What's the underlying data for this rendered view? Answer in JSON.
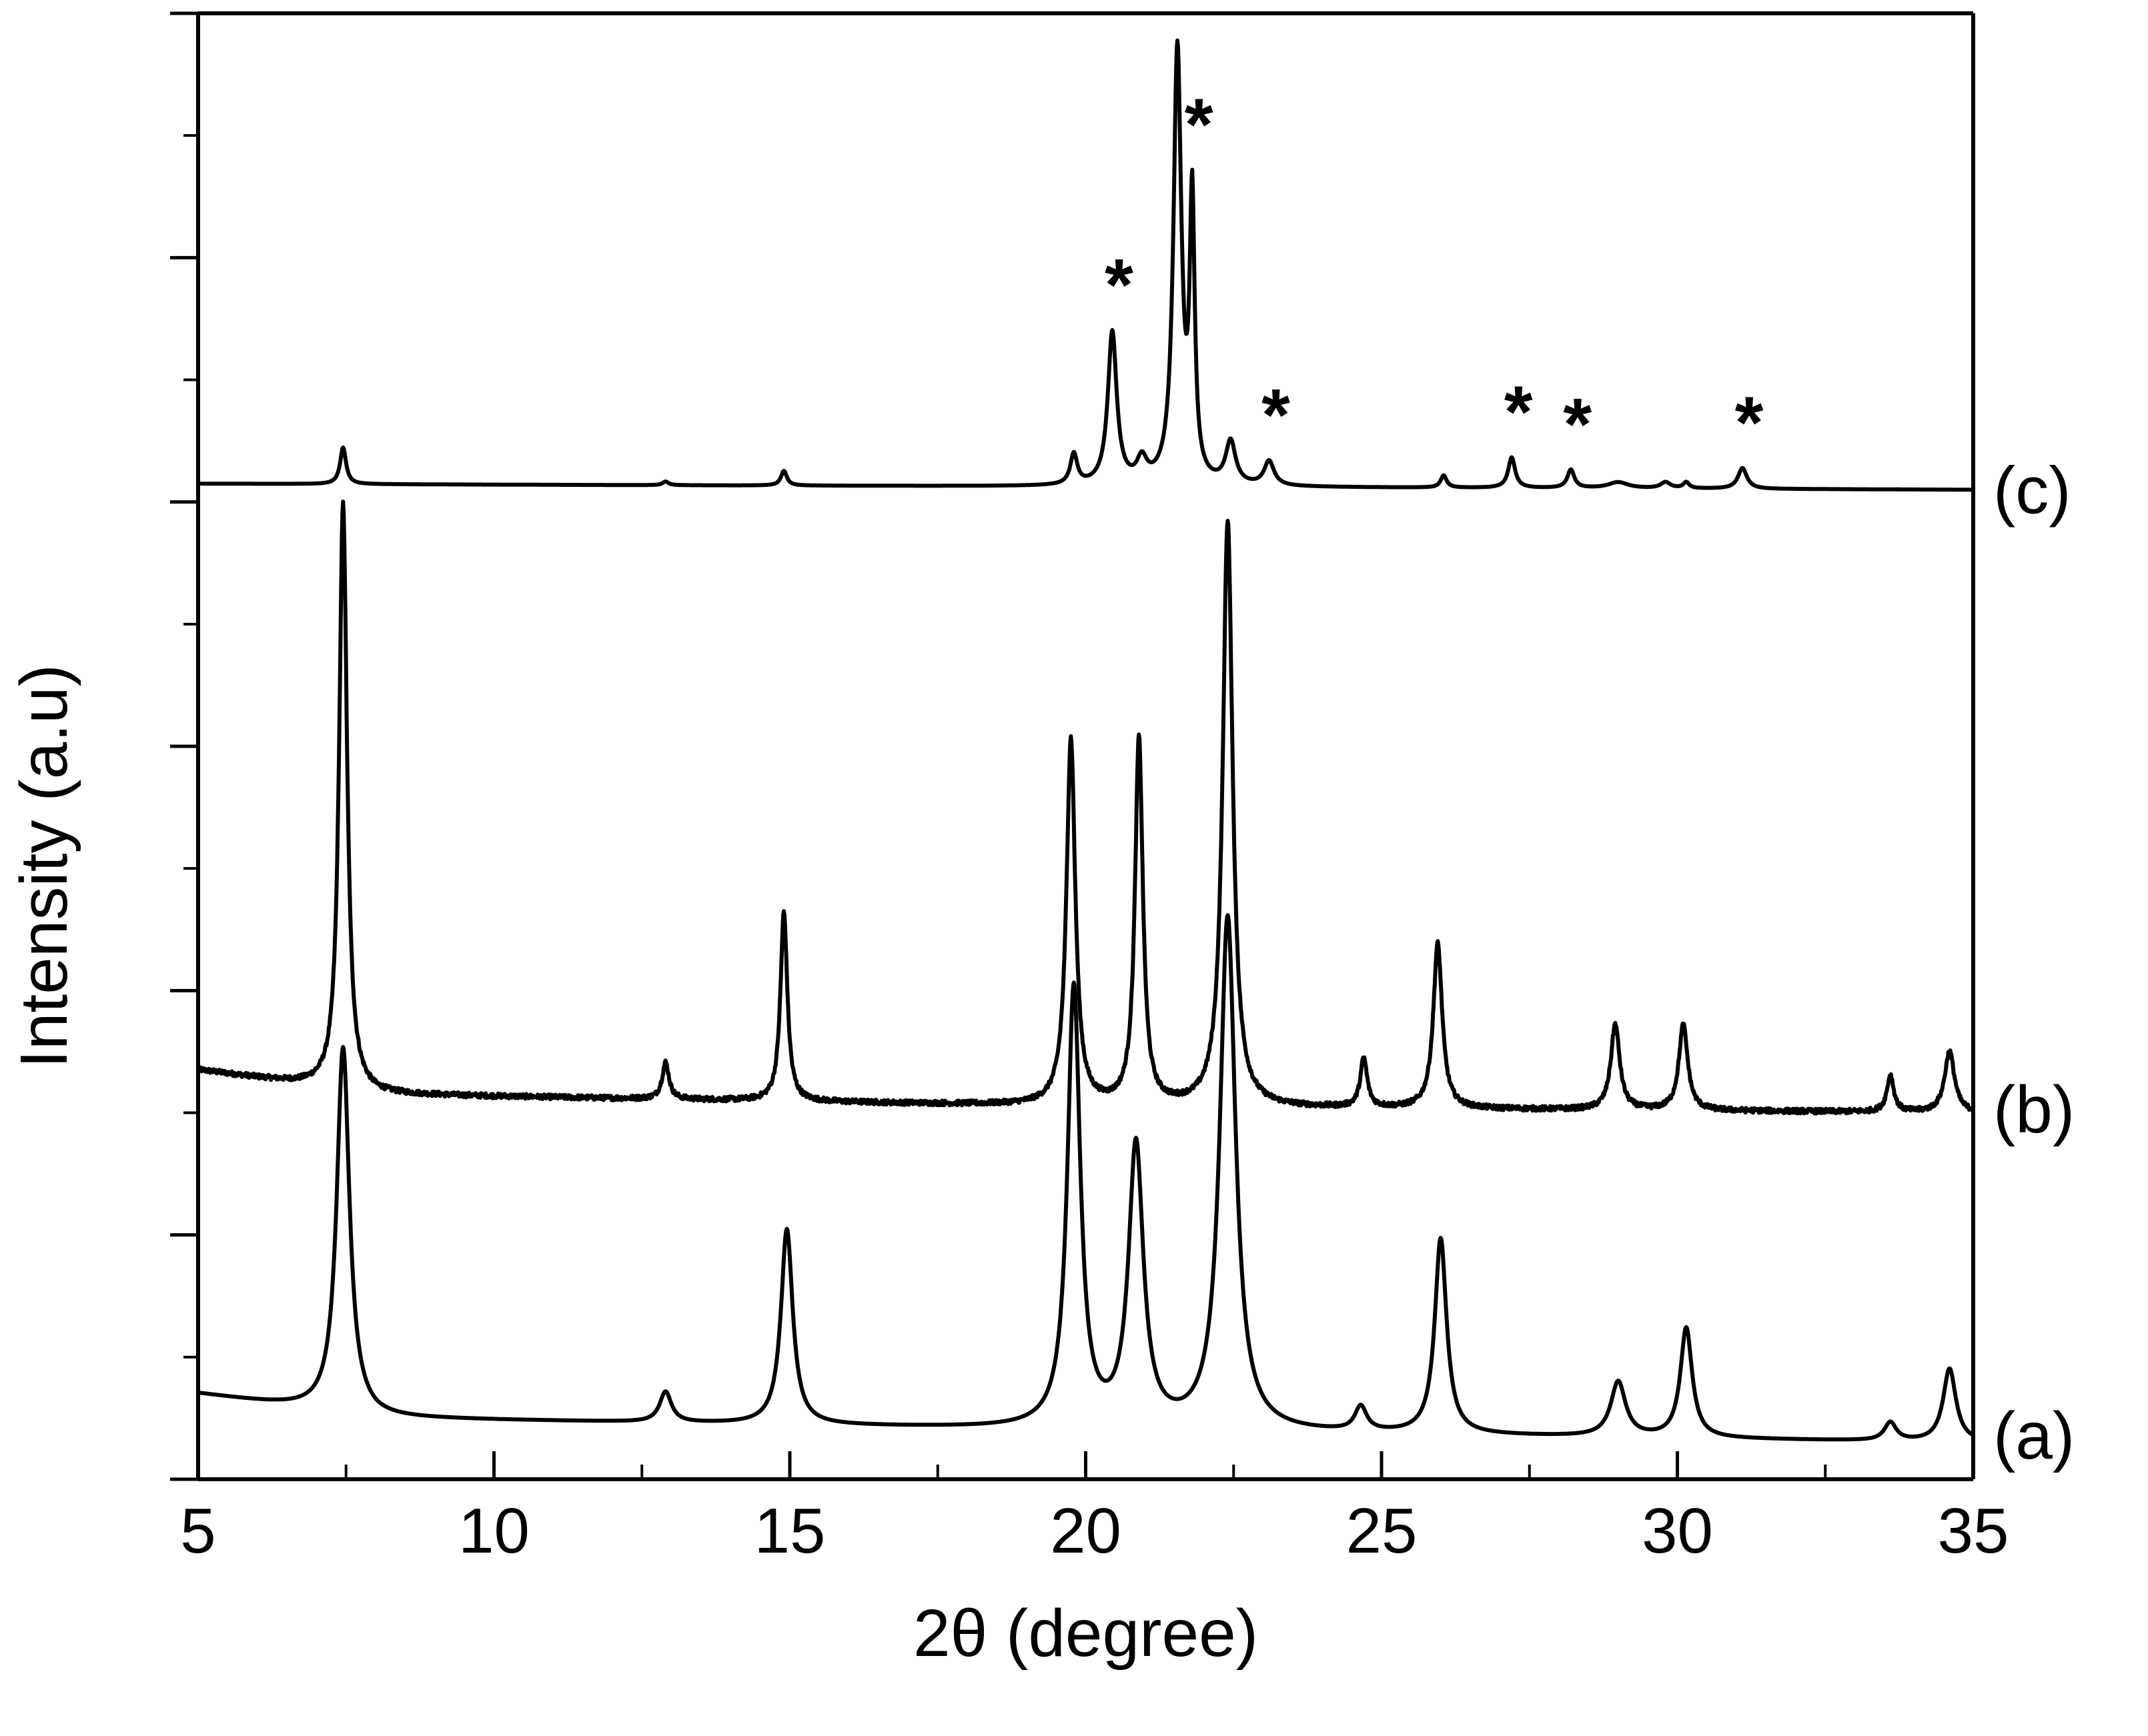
{
  "chart_data": {
    "type": "line",
    "title": "",
    "xlabel": "2θ (degree)",
    "ylabel": "Intensity (a.u)",
    "xlim": [
      5,
      35
    ],
    "ylim": [
      0,
      12
    ],
    "x_ticks": [
      "5",
      "10",
      "15",
      "20",
      "25",
      "30",
      "35"
    ],
    "y_ticks_labeled": false,
    "grid": false,
    "legend": "none (series labelled at right end of each trace)",
    "series": [
      {
        "name": "(a)",
        "baseline": [
          [
            5,
            0.7
          ],
          [
            8,
            0.5
          ],
          [
            20,
            0.4
          ],
          [
            35,
            0.3
          ]
        ],
        "noise": 0,
        "peaks": [
          [
            7.45,
            3.0,
            0.13
          ],
          [
            12.9,
            0.25,
            0.12
          ],
          [
            14.95,
            1.6,
            0.12
          ],
          [
            19.8,
            3.6,
            0.13
          ],
          [
            20.85,
            2.3,
            0.15
          ],
          [
            22.4,
            4.2,
            0.16
          ],
          [
            24.65,
            0.2,
            0.12
          ],
          [
            26.0,
            1.6,
            0.12
          ],
          [
            29.0,
            0.45,
            0.15
          ],
          [
            30.15,
            0.9,
            0.12
          ],
          [
            33.6,
            0.15,
            0.12
          ],
          [
            34.6,
            0.6,
            0.13
          ]
        ],
        "offset": 0
      },
      {
        "name": "(b)",
        "baseline": [
          [
            5,
            0.35
          ],
          [
            8,
            0.15
          ],
          [
            20,
            0.05
          ],
          [
            35,
            0.0
          ]
        ],
        "noise": 0.04,
        "peaks": [
          [
            7.45,
            4.8,
            0.08
          ],
          [
            12.9,
            0.3,
            0.07
          ],
          [
            14.9,
            1.55,
            0.07
          ],
          [
            19.75,
            3.0,
            0.09
          ],
          [
            20.9,
            3.0,
            0.08
          ],
          [
            22.4,
            4.8,
            0.1
          ],
          [
            24.7,
            0.4,
            0.07
          ],
          [
            25.95,
            1.35,
            0.09
          ],
          [
            28.95,
            0.7,
            0.09
          ],
          [
            30.1,
            0.7,
            0.09
          ],
          [
            33.6,
            0.3,
            0.07
          ],
          [
            34.6,
            0.5,
            0.1
          ]
        ],
        "offset": 3.0
      },
      {
        "name": "(c)",
        "baseline": [
          [
            5,
            0.05
          ],
          [
            35,
            0.0
          ]
        ],
        "noise": 0,
        "peaks": [
          [
            7.45,
            0.3,
            0.06
          ],
          [
            12.9,
            0.03,
            0.06
          ],
          [
            14.9,
            0.12,
            0.06
          ],
          [
            19.8,
            0.25,
            0.07
          ],
          [
            20.45,
            1.25,
            0.09
          ],
          [
            20.95,
            0.18,
            0.1
          ],
          [
            21.55,
            3.55,
            0.08
          ],
          [
            21.8,
            2.25,
            0.05
          ],
          [
            22.45,
            0.35,
            0.1
          ],
          [
            23.1,
            0.2,
            0.1
          ],
          [
            26.05,
            0.1,
            0.06
          ],
          [
            27.2,
            0.25,
            0.07
          ],
          [
            28.2,
            0.15,
            0.07
          ],
          [
            29.0,
            0.05,
            0.2
          ],
          [
            29.8,
            0.05,
            0.1
          ],
          [
            30.15,
            0.05,
            0.06
          ],
          [
            31.1,
            0.17,
            0.09
          ]
        ],
        "offset": 8.1
      }
    ],
    "annotations": [
      {
        "text": "*",
        "x": 21.55,
        "series": "(c)"
      },
      {
        "text": "*",
        "x": 21.8,
        "series": "(c)"
      },
      {
        "text": "*",
        "x": 20.45,
        "series": "(c)"
      },
      {
        "text": "*",
        "x": 23.1,
        "series": "(c)"
      },
      {
        "text": "*",
        "x": 27.2,
        "series": "(c)"
      },
      {
        "text": "*",
        "x": 28.2,
        "series": "(c)"
      },
      {
        "text": "*",
        "x": 31.1,
        "series": "(c)"
      }
    ],
    "colors": {
      "line": "#000000",
      "axis": "#000000"
    }
  }
}
